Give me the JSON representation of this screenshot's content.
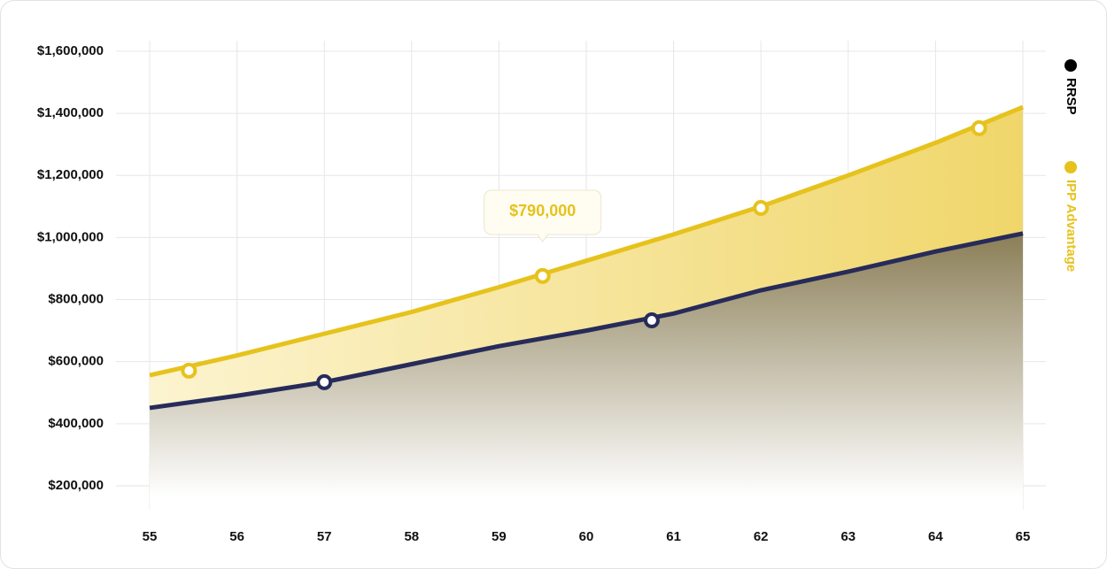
{
  "chart_data": {
    "type": "line",
    "xlim": [
      55,
      65
    ],
    "xticks": [
      55,
      56,
      57,
      58,
      59,
      60,
      61,
      62,
      63,
      64,
      65
    ],
    "ylim": [
      123000,
      1634000
    ],
    "yticks": [
      {
        "value": 200000,
        "label": "$200,000"
      },
      {
        "value": 400000,
        "label": "$400,000"
      },
      {
        "value": 600000,
        "label": "$600,000"
      },
      {
        "value": 800000,
        "label": "$800,000"
      },
      {
        "value": 1000000,
        "label": "$1,000,000"
      },
      {
        "value": 1200000,
        "label": "$1,200,000"
      },
      {
        "value": 1400000,
        "label": "$1,400,000"
      },
      {
        "value": 1600000,
        "label": "$1,600,000"
      }
    ],
    "grid": true,
    "legend": "right",
    "series": [
      {
        "name": "RRSP",
        "color": "#272b5a",
        "x": [
          55,
          56,
          57,
          58,
          59,
          60,
          61,
          62,
          63,
          64,
          65
        ],
        "values": [
          451000,
          490000,
          534000,
          592000,
          650000,
          700000,
          755000,
          830000,
          890000,
          955000,
          1013000
        ],
        "markers": {
          "x": [
            57,
            60.75
          ],
          "values": [
            534000,
            733000
          ]
        }
      },
      {
        "name": "IPP Advantage",
        "color": "#e6c21c",
        "x": [
          55,
          56,
          57,
          58,
          59,
          60,
          61,
          62,
          63,
          64,
          65
        ],
        "values": [
          556000,
          620000,
          690000,
          760000,
          840000,
          925000,
          1010000,
          1100000,
          1200000,
          1305000,
          1420000
        ],
        "markers": {
          "x": [
            55.45,
            59.5,
            62,
            64.5
          ],
          "values": [
            571000,
            876000,
            1095000,
            1352000
          ]
        }
      }
    ],
    "annotation": {
      "text": "$790,000",
      "x": 59.5
    }
  }
}
